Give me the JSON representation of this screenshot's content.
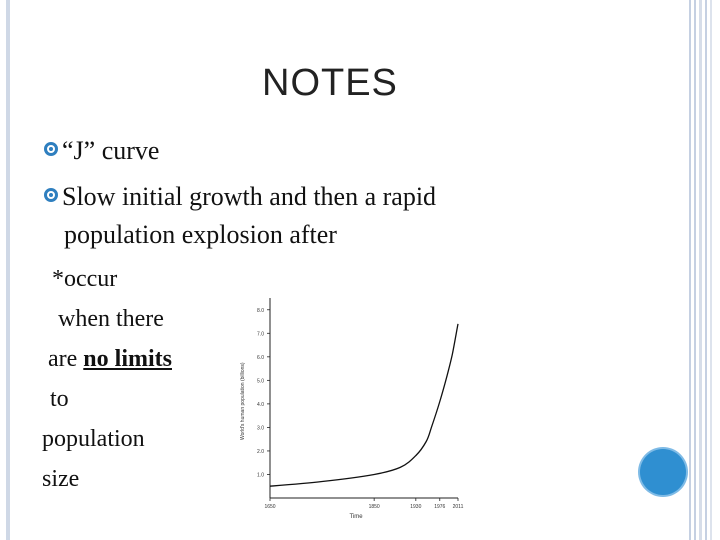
{
  "slide": {
    "title": "NOTES",
    "bullets": [
      {
        "text": "“J” curve"
      },
      {
        "text": "Slow initial growth and then a rapid",
        "continuation": "population explosion after"
      }
    ],
    "side_note": {
      "line1": "*occur",
      "line2": "when there",
      "line3_prefix": "are ",
      "line3_emph": "no limits",
      "line4": "to",
      "line5": "population",
      "line6": "size"
    }
  },
  "chart_data": {
    "type": "line",
    "xlabel": "Time",
    "ylabel": "World's human population (billions)",
    "x_ticks": [
      "1650",
      "1850",
      "1930",
      "1976",
      "2011"
    ],
    "y_ticks": [
      "1.0",
      "2.0",
      "3.0",
      "4.0",
      "5.0",
      "6.0",
      "7.0",
      "8.0"
    ],
    "x": [
      1650,
      1750,
      1850,
      1900,
      1930,
      1950,
      1960,
      1976,
      1990,
      2000,
      2011
    ],
    "y": [
      0.5,
      0.7,
      1.0,
      1.3,
      1.8,
      2.4,
      3.0,
      4.1,
      5.2,
      6.1,
      7.4
    ],
    "xlim": [
      1650,
      2011
    ],
    "ylim": [
      0,
      8.5
    ]
  },
  "colors": {
    "accent": "#2f7fbf",
    "circle": "#2f8fd1"
  }
}
